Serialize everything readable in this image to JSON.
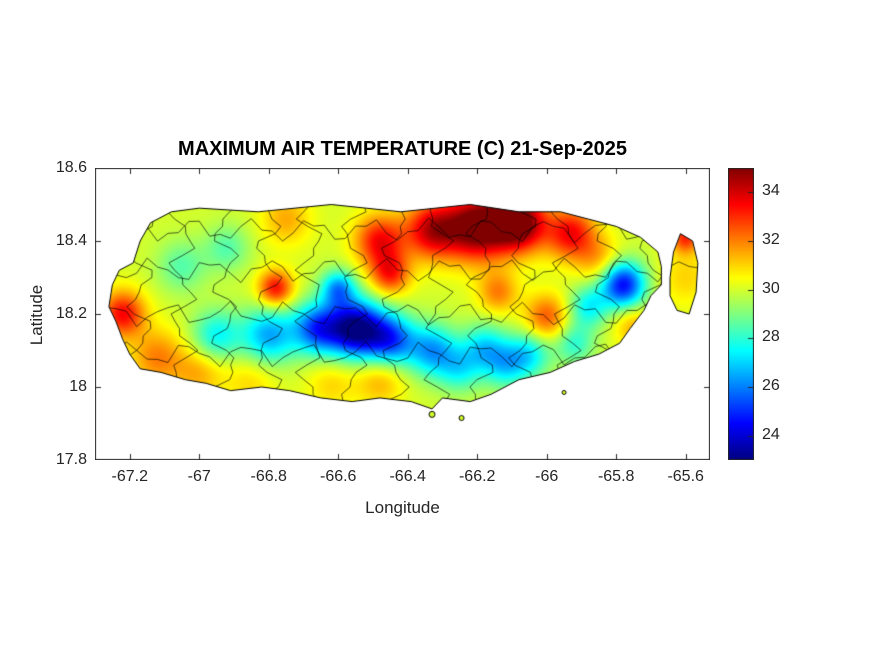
{
  "chart_data": {
    "type": "heatmap",
    "title": "MAXIMUM AIR TEMPERATURE (C) 21-Sep-2025",
    "xlabel": "Longitude",
    "ylabel": "Latitude",
    "xlim": [
      -67.3,
      -65.53
    ],
    "ylim": [
      17.8,
      18.6
    ],
    "xticks": [
      -67.2,
      -67,
      -66.8,
      -66.6,
      -66.4,
      -66.2,
      -66,
      -65.8,
      -65.6
    ],
    "xtick_labels": [
      "-67.2",
      "-67",
      "-66.8",
      "-66.6",
      "-66.4",
      "-66.2",
      "-66",
      "-65.8",
      "-65.6"
    ],
    "yticks": [
      17.8,
      18,
      18.2,
      18.4,
      18.6
    ],
    "ytick_labels": [
      "17.8",
      "18",
      "18.2",
      "18.4",
      "18.6"
    ],
    "grid": false,
    "axis_color": "#262626",
    "boundary_line_color": "#000000",
    "colorbar": {
      "min": 23,
      "max": 35,
      "ticks": [
        24,
        26,
        28,
        30,
        32,
        34
      ],
      "tick_labels": [
        "24",
        "26",
        "28",
        "30",
        "32",
        "34"
      ],
      "colormap": "jet",
      "position": "right"
    },
    "base_temp_c": 30,
    "temperature_blobs_lon_lat_tempC_sigma": [
      [
        -66.55,
        18.16,
        23.2,
        0.055
      ],
      [
        -66.45,
        18.13,
        25.5,
        0.05
      ],
      [
        -66.66,
        18.16,
        25.5,
        0.05
      ],
      [
        -66.8,
        18.14,
        26.5,
        0.055
      ],
      [
        -66.95,
        18.14,
        27.5,
        0.05
      ],
      [
        -66.33,
        18.1,
        26.5,
        0.05
      ],
      [
        -66.18,
        18.11,
        27.5,
        0.045
      ],
      [
        -66.05,
        18.09,
        27.5,
        0.045
      ],
      [
        -65.92,
        18.12,
        28.0,
        0.04
      ],
      [
        -66.6,
        18.27,
        26.5,
        0.035
      ],
      [
        -65.78,
        18.28,
        24.5,
        0.045
      ],
      [
        -65.88,
        18.22,
        27.5,
        0.04
      ],
      [
        -66.25,
        18.05,
        27.8,
        0.045
      ],
      [
        -66.12,
        18.06,
        27.5,
        0.045
      ],
      [
        -66.2,
        18.44,
        35.5,
        0.065
      ],
      [
        -66.08,
        18.45,
        35.5,
        0.055
      ],
      [
        -66.33,
        18.43,
        34.0,
        0.055
      ],
      [
        -66.48,
        18.4,
        33.5,
        0.05
      ],
      [
        -65.93,
        18.42,
        33.5,
        0.05
      ],
      [
        -66.45,
        18.31,
        33.0,
        0.04
      ],
      [
        -66.78,
        18.27,
        33.5,
        0.035
      ],
      [
        -67.22,
        18.2,
        33.5,
        0.045
      ],
      [
        -67.12,
        18.08,
        32.0,
        0.055
      ],
      [
        -67.0,
        18.04,
        31.5,
        0.05
      ],
      [
        -66.85,
        18.02,
        31.0,
        0.055
      ],
      [
        -66.62,
        18.01,
        31.0,
        0.05
      ],
      [
        -66.48,
        18.02,
        31.5,
        0.05
      ],
      [
        -66.0,
        18.19,
        32.5,
        0.045
      ],
      [
        -66.14,
        18.26,
        32.0,
        0.04
      ],
      [
        -65.75,
        18.17,
        31.5,
        0.04
      ],
      [
        -66.75,
        18.46,
        31.5,
        0.05
      ],
      [
        -65.85,
        18.35,
        31.5,
        0.045
      ],
      [
        -65.6,
        18.3,
        31.0,
        0.055
      ],
      [
        -65.6,
        18.41,
        33.0,
        0.03
      ],
      [
        -67.05,
        18.33,
        28.5,
        0.05
      ],
      [
        -66.92,
        18.38,
        28.5,
        0.045
      ]
    ],
    "island_outline": [
      [
        -67.19,
        18.34
      ],
      [
        -67.17,
        18.4
      ],
      [
        -67.14,
        18.45
      ],
      [
        -67.08,
        18.48
      ],
      [
        -67.0,
        18.49
      ],
      [
        -66.83,
        18.48
      ],
      [
        -66.62,
        18.5
      ],
      [
        -66.42,
        18.48
      ],
      [
        -66.22,
        18.5
      ],
      [
        -66.08,
        18.48
      ],
      [
        -65.96,
        18.48
      ],
      [
        -65.88,
        18.46
      ],
      [
        -65.8,
        18.44
      ],
      [
        -65.73,
        18.41
      ],
      [
        -65.68,
        18.37
      ],
      [
        -65.67,
        18.33
      ],
      [
        -65.67,
        18.28
      ],
      [
        -65.7,
        18.25
      ],
      [
        -65.72,
        18.21
      ],
      [
        -65.76,
        18.16
      ],
      [
        -65.79,
        18.12
      ],
      [
        -65.85,
        18.09
      ],
      [
        -65.92,
        18.07
      ],
      [
        -65.99,
        18.04
      ],
      [
        -66.08,
        18.02
      ],
      [
        -66.16,
        17.98
      ],
      [
        -66.22,
        17.96
      ],
      [
        -66.3,
        17.97
      ],
      [
        -66.33,
        17.94
      ],
      [
        -66.39,
        17.96
      ],
      [
        -66.48,
        17.97
      ],
      [
        -66.56,
        17.96
      ],
      [
        -66.65,
        17.97
      ],
      [
        -66.74,
        17.99
      ],
      [
        -66.82,
        18.0
      ],
      [
        -66.91,
        17.99
      ],
      [
        -66.98,
        18.01
      ],
      [
        -67.04,
        18.02
      ],
      [
        -67.11,
        18.04
      ],
      [
        -67.17,
        18.05
      ],
      [
        -67.2,
        18.09
      ],
      [
        -67.22,
        18.13
      ],
      [
        -67.24,
        18.18
      ],
      [
        -67.26,
        18.22
      ],
      [
        -67.25,
        18.28
      ],
      [
        -67.23,
        18.32
      ]
    ],
    "east_island_outline": [
      [
        -65.645,
        18.3
      ],
      [
        -65.635,
        18.37
      ],
      [
        -65.615,
        18.42
      ],
      [
        -65.58,
        18.4
      ],
      [
        -65.565,
        18.34
      ],
      [
        -65.57,
        18.26
      ],
      [
        -65.59,
        18.2
      ],
      [
        -65.625,
        18.21
      ],
      [
        -65.645,
        18.25
      ]
    ],
    "islets_lon_lat_rpx": [
      [
        -66.33,
        17.925,
        3
      ],
      [
        -66.245,
        17.915,
        2.5
      ],
      [
        -65.95,
        17.985,
        2
      ]
    ],
    "boundaries": {
      "vertical_count": 13,
      "lon_start": -67.17,
      "lon_end": -65.7,
      "horizontal_lats": [
        18.09,
        18.2,
        18.32,
        18.43
      ],
      "wobble_deg": 0.03
    }
  }
}
